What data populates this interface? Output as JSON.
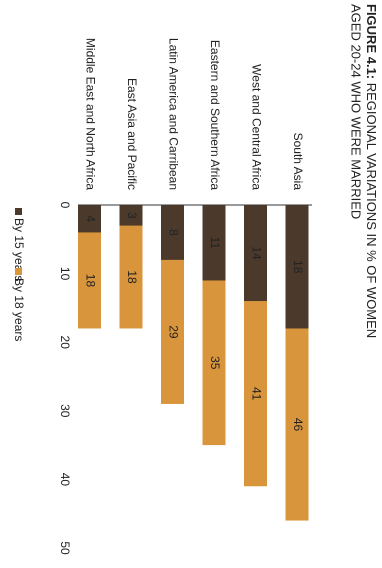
{
  "chart_data": {
    "type": "bar",
    "title_label": "FIGURE 4.1:",
    "title": [
      "REGIONAL VARIATIONS IN % OF WOMEN",
      "AGED 20-24 WHO WERE MARRIED"
    ],
    "categories": [
      "South Asia",
      "West and Central Africa",
      "Eastern and Southern Africa",
      "Latin America and Carribean",
      "East Asia and Pacific",
      "Middle East and North Africa"
    ],
    "series": [
      {
        "name": "By 15 years",
        "color": "#4b3a2c",
        "values": [
          18,
          14,
          11,
          8,
          3,
          4
        ]
      },
      {
        "name": "By 18 years",
        "color": "#d9953c",
        "values": [
          46,
          41,
          35,
          29,
          18,
          18
        ]
      }
    ],
    "xlim": [
      0,
      50
    ],
    "xticks": [
      0,
      10,
      20,
      30,
      40,
      50
    ]
  }
}
